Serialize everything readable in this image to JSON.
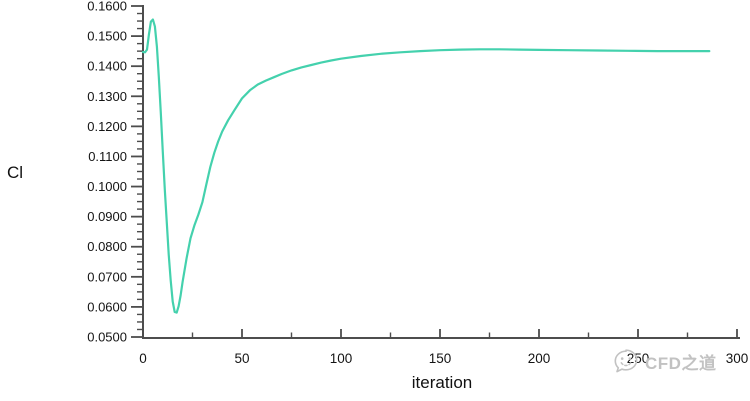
{
  "chart_data": {
    "type": "line",
    "title": "",
    "xlabel": "iteration",
    "ylabel": "Cl",
    "xlim": [
      0,
      300
    ],
    "ylim": [
      0.05,
      0.16
    ],
    "grid": false,
    "legend": "none",
    "x_major_ticks": [
      0,
      50,
      100,
      150,
      200,
      250,
      300
    ],
    "x_tick_labels": [
      "0",
      "50",
      "100",
      "150",
      "200",
      "250",
      "300"
    ],
    "x_minor_step": 25,
    "y_major_ticks": [
      0.05,
      0.06,
      0.07,
      0.08,
      0.09,
      0.1,
      0.11,
      0.12,
      0.13,
      0.14,
      0.15,
      0.16
    ],
    "y_tick_labels": [
      "0.0500",
      "0.0600",
      "0.0700",
      "0.0800",
      "0.0900",
      "0.1000",
      "0.1100",
      "0.1200",
      "0.1300",
      "0.1400",
      "0.1500",
      "0.1600"
    ],
    "y_minor_step": 0.0025,
    "line_color": "#44d1ad",
    "axis_color": "#4d4d4d",
    "text_color": "#141414",
    "series": [
      {
        "name": "Cl",
        "points": [
          [
            0,
            0.1447
          ],
          [
            1,
            0.1446
          ],
          [
            2,
            0.1455
          ],
          [
            3,
            0.1505
          ],
          [
            4,
            0.1548
          ],
          [
            5,
            0.1555
          ],
          [
            6,
            0.1532
          ],
          [
            7,
            0.1465
          ],
          [
            8,
            0.1365
          ],
          [
            9,
            0.1245
          ],
          [
            10,
            0.1115
          ],
          [
            11,
            0.099
          ],
          [
            12,
            0.088
          ],
          [
            13,
            0.0775
          ],
          [
            14,
            0.0688
          ],
          [
            15,
            0.0618
          ],
          [
            16,
            0.0583
          ],
          [
            17,
            0.0581
          ],
          [
            18,
            0.0602
          ],
          [
            19,
            0.0638
          ],
          [
            20,
            0.0683
          ],
          [
            22,
            0.0762
          ],
          [
            24,
            0.0828
          ],
          [
            26,
            0.0872
          ],
          [
            28,
            0.0907
          ],
          [
            30,
            0.0948
          ],
          [
            32,
            0.1008
          ],
          [
            34,
            0.1065
          ],
          [
            36,
            0.1112
          ],
          [
            38,
            0.115
          ],
          [
            40,
            0.1183
          ],
          [
            43,
            0.122
          ],
          [
            46,
            0.1252
          ],
          [
            50,
            0.1293
          ],
          [
            54,
            0.132
          ],
          [
            58,
            0.1339
          ],
          [
            62,
            0.1352
          ],
          [
            66,
            0.1363
          ],
          [
            70,
            0.1374
          ],
          [
            75,
            0.1386
          ],
          [
            80,
            0.1396
          ],
          [
            85,
            0.1404
          ],
          [
            90,
            0.1412
          ],
          [
            95,
            0.1419
          ],
          [
            100,
            0.1425
          ],
          [
            110,
            0.1434
          ],
          [
            120,
            0.1441
          ],
          [
            130,
            0.1446
          ],
          [
            140,
            0.145
          ],
          [
            150,
            0.1453
          ],
          [
            160,
            0.1455
          ],
          [
            170,
            0.1456
          ],
          [
            180,
            0.1456
          ],
          [
            190,
            0.1455
          ],
          [
            200,
            0.1454
          ],
          [
            215,
            0.1453
          ],
          [
            230,
            0.1452
          ],
          [
            245,
            0.1451
          ],
          [
            260,
            0.145
          ],
          [
            275,
            0.145
          ],
          [
            286,
            0.145
          ]
        ]
      }
    ]
  },
  "watermark": {
    "text": "CFD之道",
    "icon": "wechat-chat-bubble-icon",
    "color": "#c2c2c2"
  }
}
